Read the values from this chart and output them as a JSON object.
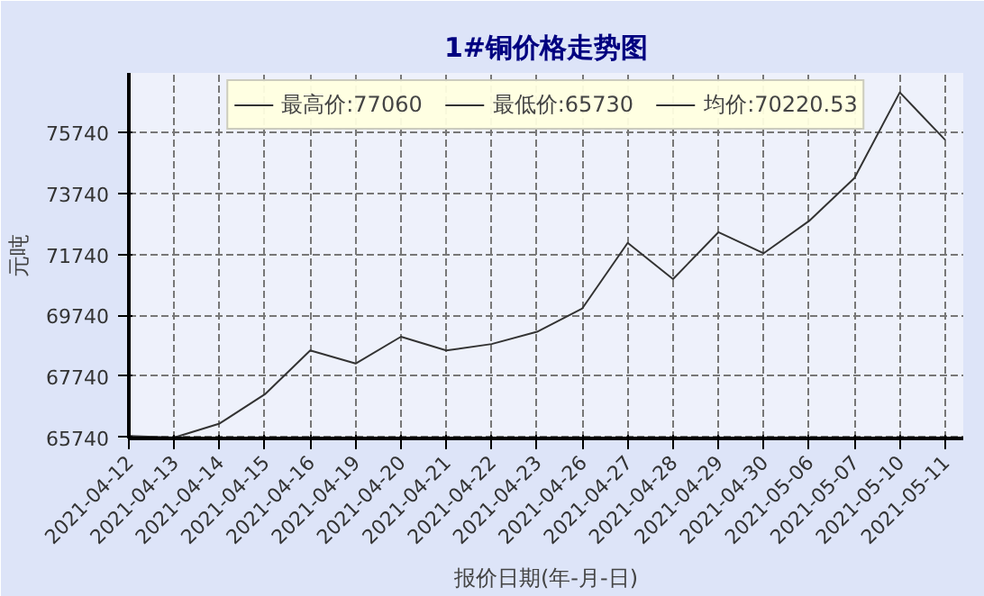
{
  "chart_data": {
    "type": "line",
    "title": "1#铜价格走势图",
    "xlabel": "报价日期(年-月-日)",
    "ylabel": "元吨",
    "annotations": [
      "最高价:77060",
      "最低价:65730",
      "均价:70220.53"
    ],
    "categories": [
      "2021-04-12",
      "2021-04-13",
      "2021-04-14",
      "2021-04-15",
      "2021-04-16",
      "2021-04-19",
      "2021-04-20",
      "2021-04-21",
      "2021-04-22",
      "2021-04-23",
      "2021-04-26",
      "2021-04-27",
      "2021-04-28",
      "2021-04-29",
      "2021-04-30",
      "2021-05-06",
      "2021-05-07",
      "2021-05-10",
      "2021-05-11"
    ],
    "series": [
      {
        "color": "#333333",
        "values": [
          65780,
          65730,
          66190,
          67150,
          68590,
          68160,
          69040,
          68590,
          68800,
          69200,
          69970,
          72120,
          70930,
          72470,
          71780,
          72840,
          74250,
          77060,
          75500
        ]
      }
    ],
    "ylim": [
      65700,
      77700
    ],
    "yticks": [
      65740,
      67740,
      69740,
      71740,
      73740,
      75740
    ],
    "grid": true,
    "marker": "none",
    "line_style": "solid"
  }
}
